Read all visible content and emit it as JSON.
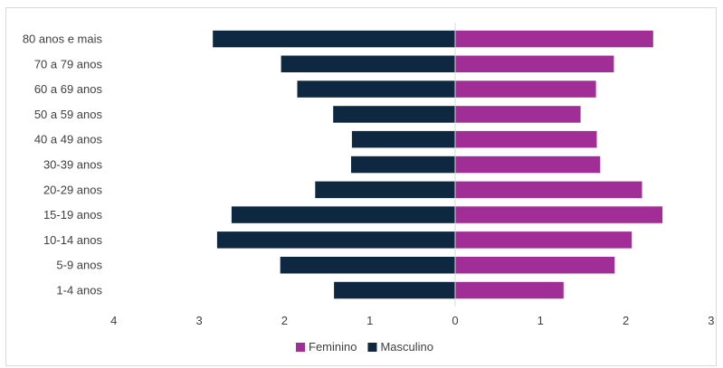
{
  "chart_data": {
    "type": "bar",
    "orientation": "horizontal-population-pyramid",
    "categories": [
      "80 anos e mais",
      "70 a 79 anos",
      "60 a 69 anos",
      "50 a 59 anos",
      "40 a 49 anos",
      "30-39 anos",
      "20-29 anos",
      "15-19 anos",
      "10-14 anos",
      "5-9 anos",
      "1-4 anos"
    ],
    "series": [
      {
        "name": "Feminino",
        "color": "#a12d97",
        "side": "right",
        "values": [
          2.32,
          1.86,
          1.65,
          1.47,
          1.66,
          1.7,
          2.19,
          2.43,
          2.07,
          1.87,
          1.27
        ]
      },
      {
        "name": "Masculino",
        "color": "#0e2841",
        "side": "left",
        "values": [
          2.84,
          2.04,
          1.85,
          1.43,
          1.21,
          1.22,
          1.64,
          2.62,
          2.79,
          2.05,
          1.42
        ]
      }
    ],
    "xlim": [
      -4,
      3
    ],
    "x_ticks": [
      {
        "value": -4,
        "label": "4"
      },
      {
        "value": -3,
        "label": "3"
      },
      {
        "value": -2,
        "label": "2"
      },
      {
        "value": -1,
        "label": "1"
      },
      {
        "value": 0,
        "label": "0"
      },
      {
        "value": 1,
        "label": "1"
      },
      {
        "value": 2,
        "label": "2"
      },
      {
        "value": 3,
        "label": "3"
      }
    ],
    "title": "",
    "xlabel": "",
    "ylabel": "",
    "grid": false,
    "legend_position": "bottom"
  }
}
